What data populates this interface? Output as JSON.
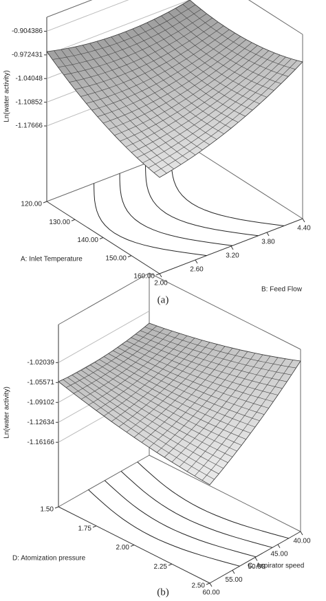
{
  "chart_data": [
    {
      "type": "surface",
      "zlabel": "Ln(water activity)",
      "xlabel": "A: Inlet Temperature",
      "ylabel": "B: Feed Flow",
      "caption": "(a)",
      "zlim": [
        -1.394,
        -0.864
      ],
      "zticks": [
        -0.904386,
        -0.972431,
        -1.04048,
        -1.10852,
        -1.17666
      ],
      "xlim": [
        120,
        160
      ],
      "xticks": [
        {
          "value": 120,
          "label": "120.00"
        },
        {
          "value": 130,
          "label": "130.00"
        },
        {
          "value": 140,
          "label": "140.00"
        },
        {
          "value": 150,
          "label": "150.00"
        },
        {
          "value": 160,
          "label": "160.00"
        }
      ],
      "ylim": [
        2,
        4.4
      ],
      "yticks": [
        {
          "value": 2,
          "label": "2.00"
        },
        {
          "value": 2.6,
          "label": "2.60"
        },
        {
          "value": 3.2,
          "label": "3.20"
        },
        {
          "value": 3.8,
          "label": "3.80"
        },
        {
          "value": 4.4,
          "label": "4.40"
        }
      ]
    },
    {
      "type": "surface",
      "zlabel": "Ln(water activity)",
      "xlabel": "D: Atomization pressure",
      "ylabel": "C: Aspirator speed",
      "caption": "(b)",
      "zlim": [
        -1.276,
        -0.953
      ],
      "zticks": [
        -1.02039,
        -1.05571,
        -1.09102,
        -1.12634,
        -1.16166
      ],
      "xlim": [
        1.5,
        2.5
      ],
      "xticks": [
        {
          "value": 1.5,
          "label": "1.50"
        },
        {
          "value": 1.75,
          "label": "1.75"
        },
        {
          "value": 2,
          "label": "2.00"
        },
        {
          "value": 2.25,
          "label": "2.25"
        },
        {
          "value": 2.5,
          "label": "2.50"
        }
      ],
      "ylim": [
        60,
        40
      ],
      "yticks": [
        {
          "value": 60,
          "label": "60.00"
        },
        {
          "value": 55,
          "label": "55.00"
        },
        {
          "value": 50,
          "label": "50.00"
        },
        {
          "value": 45,
          "label": "45.00"
        },
        {
          "value": 40,
          "label": "40.00"
        }
      ]
    }
  ]
}
